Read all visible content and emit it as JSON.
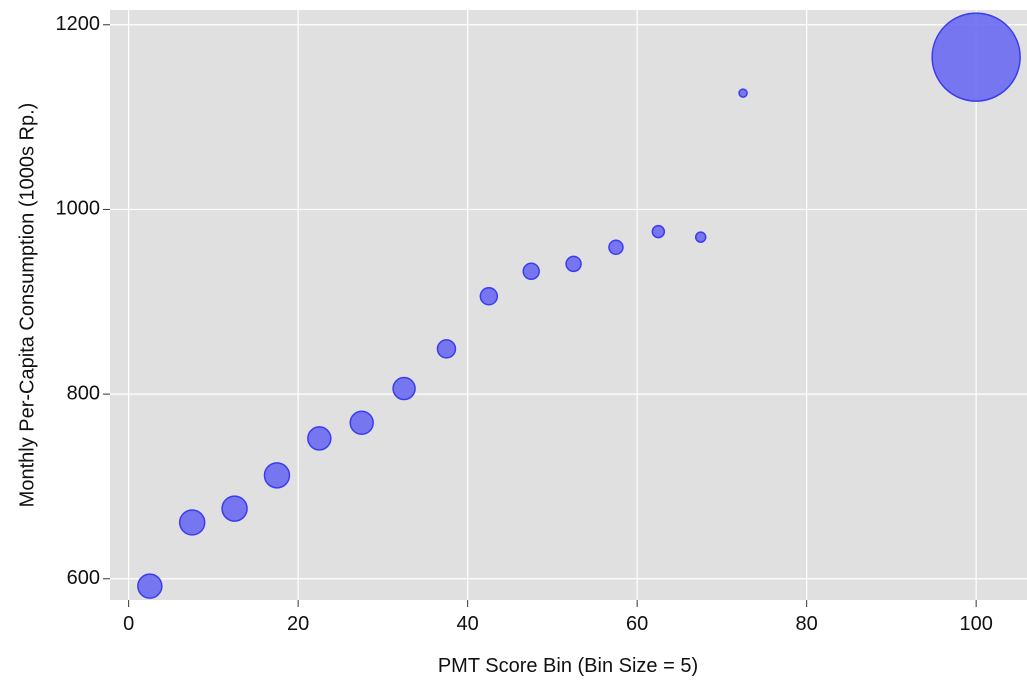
{
  "chart_data": {
    "type": "scatter",
    "xlabel": "PMT Score Bin (Bin Size = 5)",
    "ylabel": "Monthly Per-Capita Consumption (1000s Rp.)",
    "x": [
      2.5,
      7.5,
      12.5,
      17.5,
      22.5,
      27.5,
      32.5,
      37.5,
      42.5,
      47.5,
      52.5,
      57.5,
      62.5,
      67.5,
      72.5,
      100
    ],
    "values": [
      592,
      661,
      676,
      712,
      752,
      769,
      806,
      849,
      906,
      933,
      941,
      959,
      976,
      970,
      1126,
      1165
    ],
    "sizes": [
      144,
      156,
      156,
      156,
      132,
      132,
      121,
      81,
      72,
      64,
      56,
      49,
      36,
      25,
      16,
      1936
    ],
    "color": "#6a6af2",
    "edge_color": "#3c3cee",
    "xlim": [
      -2.2,
      106
    ],
    "ylim": [
      577,
      1216
    ],
    "xticks": [
      0,
      20,
      40,
      60,
      80,
      100
    ],
    "yticks": [
      600,
      800,
      1000,
      1200
    ],
    "grid": true
  }
}
